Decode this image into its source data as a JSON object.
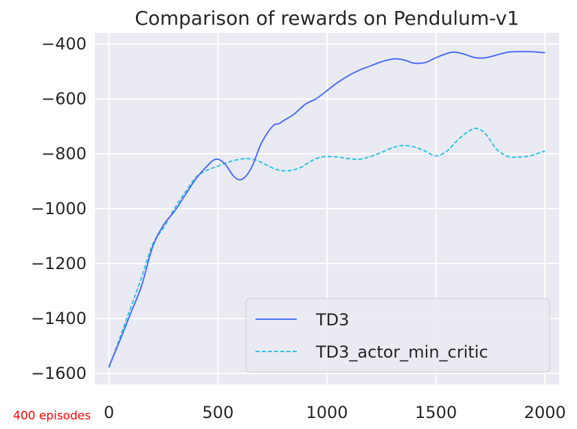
{
  "chart_data": {
    "type": "line",
    "title": "Comparison of rewards on Pendulum-v1",
    "xlabel": "",
    "ylabel": "",
    "xlim": [
      -65,
      2065
    ],
    "ylim": [
      -1640,
      -360
    ],
    "xticks": [
      0,
      500,
      1000,
      1500,
      2000
    ],
    "yticks": [
      -400,
      -600,
      -800,
      -1000,
      -1200,
      -1400,
      -1600
    ],
    "xtick_labels": [
      "0",
      "500",
      "1000",
      "1500",
      "2000"
    ],
    "ytick_labels": [
      "−400",
      "−600",
      "−800",
      "−1000",
      "−1200",
      "−1400",
      "−1600"
    ],
    "grid": true,
    "legend_position": "lower-right",
    "annotation": "400 episodes",
    "series": [
      {
        "name": "TD3",
        "color": "#4a6cf7",
        "dash": "solid",
        "x": [
          0,
          50,
          100,
          150,
          200,
          250,
          300,
          350,
          400,
          450,
          490,
          530,
          570,
          600,
          630,
          660,
          700,
          750,
          780,
          800,
          850,
          900,
          950,
          1000,
          1050,
          1100,
          1150,
          1200,
          1250,
          1300,
          1330,
          1360,
          1400,
          1450,
          1500,
          1550,
          1580,
          1620,
          1680,
          1730,
          1780,
          1830,
          1880,
          1930,
          1970,
          2000
        ],
        "y": [
          -1575,
          -1480,
          -1380,
          -1280,
          -1140,
          -1060,
          -1010,
          -950,
          -890,
          -845,
          -820,
          -835,
          -880,
          -895,
          -880,
          -840,
          -760,
          -700,
          -690,
          -680,
          -655,
          -620,
          -600,
          -570,
          -540,
          -515,
          -495,
          -480,
          -465,
          -455,
          -455,
          -460,
          -470,
          -468,
          -450,
          -435,
          -430,
          -435,
          -450,
          -450,
          -440,
          -430,
          -428,
          -428,
          -430,
          -432
        ]
      },
      {
        "name": "TD3_actor_min_critic",
        "color": "#29c4e0",
        "dash": "dashed",
        "x": [
          0,
          50,
          100,
          150,
          200,
          250,
          300,
          350,
          400,
          450,
          500,
          550,
          600,
          640,
          680,
          720,
          760,
          800,
          840,
          880,
          920,
          960,
          1000,
          1050,
          1100,
          1150,
          1200,
          1250,
          1300,
          1350,
          1400,
          1450,
          1500,
          1550,
          1600,
          1650,
          1690,
          1730,
          1780,
          1830,
          1880,
          1930,
          1970,
          2000
        ],
        "y": [
          -1580,
          -1470,
          -1360,
          -1250,
          -1130,
          -1070,
          -1000,
          -940,
          -885,
          -860,
          -845,
          -830,
          -820,
          -818,
          -825,
          -840,
          -855,
          -862,
          -860,
          -850,
          -830,
          -815,
          -810,
          -812,
          -818,
          -820,
          -810,
          -795,
          -778,
          -770,
          -775,
          -790,
          -808,
          -790,
          -750,
          -718,
          -708,
          -730,
          -785,
          -810,
          -812,
          -808,
          -798,
          -790
        ]
      }
    ]
  }
}
